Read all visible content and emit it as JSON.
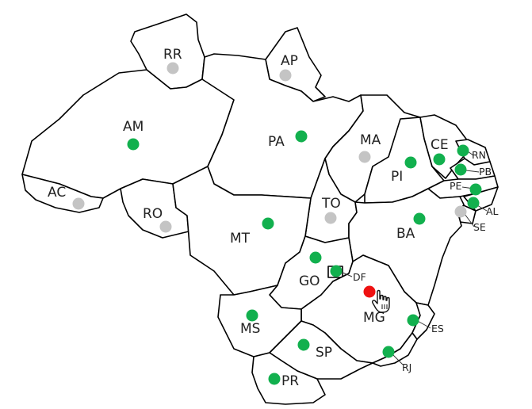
{
  "colors": {
    "active": "#12b04e",
    "inactive": "#c4c4c4",
    "selected": "#ee1111"
  },
  "states": [
    {
      "code": "RR",
      "status": "inactive"
    },
    {
      "code": "AP",
      "status": "inactive"
    },
    {
      "code": "AM",
      "status": "active"
    },
    {
      "code": "PA",
      "status": "active"
    },
    {
      "code": "MA",
      "status": "inactive"
    },
    {
      "code": "CE",
      "status": "active"
    },
    {
      "code": "RN",
      "status": "active"
    },
    {
      "code": "PB",
      "status": "active"
    },
    {
      "code": "PE",
      "status": "active"
    },
    {
      "code": "AL",
      "status": "active"
    },
    {
      "code": "SE",
      "status": "inactive"
    },
    {
      "code": "PI",
      "status": "active"
    },
    {
      "code": "AC",
      "status": "inactive"
    },
    {
      "code": "RO",
      "status": "inactive"
    },
    {
      "code": "TO",
      "status": "inactive"
    },
    {
      "code": "BA",
      "status": "active"
    },
    {
      "code": "MT",
      "status": "active"
    },
    {
      "code": "GO",
      "status": "active"
    },
    {
      "code": "DF",
      "status": "active"
    },
    {
      "code": "MG",
      "status": "selected"
    },
    {
      "code": "ES",
      "status": "active"
    },
    {
      "code": "MS",
      "status": "active"
    },
    {
      "code": "SP",
      "status": "active"
    },
    {
      "code": "RJ",
      "status": "active"
    },
    {
      "code": "PR",
      "status": "active"
    }
  ],
  "cursor_icon": "hand-pointer-icon"
}
